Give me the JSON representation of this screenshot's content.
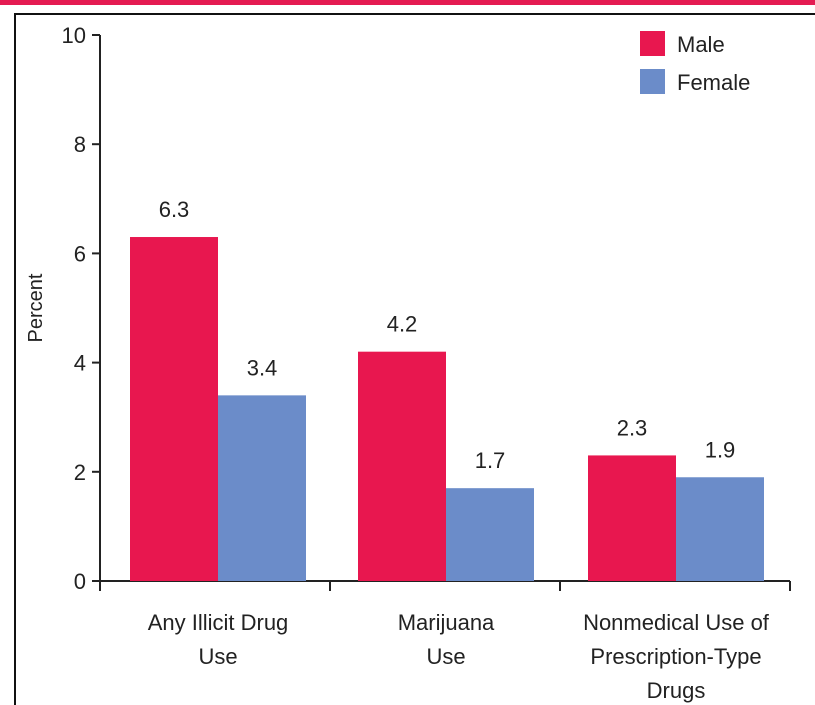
{
  "colors": {
    "accent_rule": "#e41b52",
    "male": "#e8174f",
    "female": "#6b8cc9",
    "axis": "#222222"
  },
  "chart_data": {
    "type": "bar",
    "title": "",
    "xlabel": "",
    "ylabel": "Percent",
    "ylim": [
      0,
      10
    ],
    "yticks": [
      0,
      2,
      4,
      6,
      8,
      10
    ],
    "grid": false,
    "legend_position": "top-right",
    "categories": [
      [
        "Any Illicit Drug",
        "Use"
      ],
      [
        "Marijuana",
        "Use"
      ],
      [
        "Nonmedical Use of",
        "Prescription-Type",
        "Drugs"
      ]
    ],
    "series": [
      {
        "name": "Male",
        "color": "#e8174f",
        "values": [
          6.3,
          4.2,
          2.3
        ]
      },
      {
        "name": "Female",
        "color": "#6b8cc9",
        "values": [
          3.4,
          1.7,
          1.9
        ]
      }
    ]
  }
}
